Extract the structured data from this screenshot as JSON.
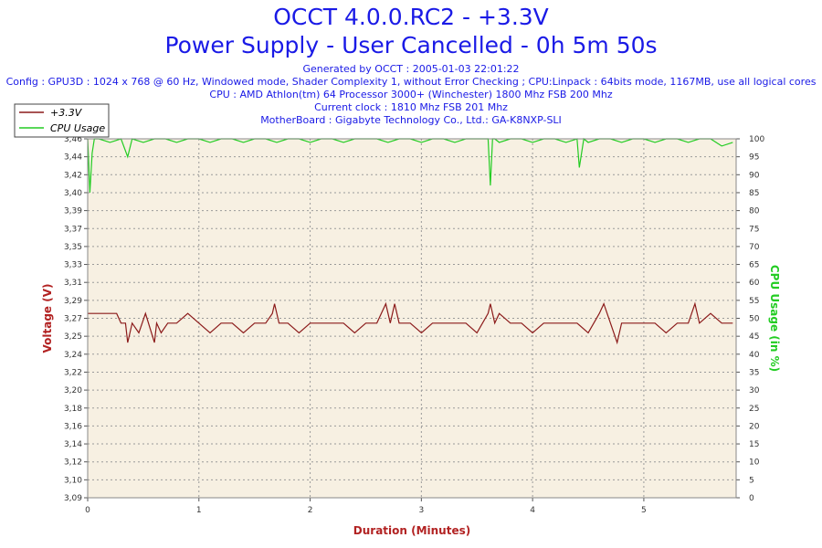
{
  "header": {
    "title_line1": "OCCT 4.0.0.RC2 - +3.3V",
    "title_line2": "Power Supply - User Cancelled - 0h 5m 50s",
    "generated": "Generated by OCCT : 2005-01-03 22:01:22",
    "config": "Config : GPU3D : 1024 x 768 @ 60 Hz, Windowed mode, Shader Complexity 1, without Error Checking ; CPU:Linpack : 64bits mode, 1167MB, use all logical cores",
    "cpu": "CPU : AMD Athlon(tm) 64 Processor 3000+ (Winchester) 1800 Mhz FSB 200 Mhz",
    "clock": "Current clock : 1810 Mhz FSB 201 Mhz",
    "motherboard": "MotherBoard : Gigabyte Technology Co., Ltd.: GA-K8NXP-SLI"
  },
  "chart_data": {
    "type": "line",
    "xlabel": "Duration (Minutes)",
    "ylabel_left": "Voltage (V)",
    "ylabel_right": "CPU Usage (in %)",
    "xlim": [
      0,
      5.83
    ],
    "ylim_left": [
      3.09,
      3.46
    ],
    "ylim_right": [
      0,
      100
    ],
    "x_ticks": [
      "0",
      "1",
      "2",
      "3",
      "4",
      "5"
    ],
    "y_left_ticks": [
      "3,46",
      "3,44",
      "3,42",
      "3,40",
      "3,39",
      "3,37",
      "3,35",
      "3,33",
      "3,31",
      "3,29",
      "3,27",
      "3,25",
      "3,24",
      "3,22",
      "3,20",
      "3,18",
      "3,16",
      "3,14",
      "3,12",
      "3,10",
      "3,09"
    ],
    "y_right_ticks": [
      "100",
      "95",
      "90",
      "85",
      "80",
      "75",
      "70",
      "65",
      "60",
      "55",
      "50",
      "45",
      "40",
      "35",
      "30",
      "25",
      "20",
      "15",
      "10",
      "5",
      "0"
    ],
    "grid": true,
    "legend_position": "top-left",
    "series": [
      {
        "name": "+3.3V",
        "color": "#8b1a1a",
        "axis": "left",
        "x": [
          0,
          0.08,
          0.2,
          0.26,
          0.3,
          0.34,
          0.36,
          0.4,
          0.46,
          0.52,
          0.6,
          0.62,
          0.66,
          0.72,
          0.8,
          0.9,
          1.0,
          1.1,
          1.2,
          1.3,
          1.4,
          1.5,
          1.6,
          1.66,
          1.68,
          1.72,
          1.8,
          1.9,
          2.0,
          2.1,
          2.2,
          2.3,
          2.4,
          2.5,
          2.6,
          2.68,
          2.72,
          2.76,
          2.8,
          2.9,
          3.0,
          3.1,
          3.2,
          3.3,
          3.4,
          3.5,
          3.6,
          3.62,
          3.66,
          3.7,
          3.8,
          3.9,
          4.0,
          4.1,
          4.2,
          4.3,
          4.4,
          4.5,
          4.6,
          4.64,
          4.7,
          4.76,
          4.8,
          4.9,
          5.0,
          5.1,
          5.2,
          5.3,
          5.4,
          5.46,
          5.5,
          5.6,
          5.7,
          5.8
        ],
        "values": [
          3.28,
          3.28,
          3.28,
          3.28,
          3.27,
          3.27,
          3.25,
          3.27,
          3.26,
          3.28,
          3.25,
          3.27,
          3.26,
          3.27,
          3.27,
          3.28,
          3.27,
          3.26,
          3.27,
          3.27,
          3.26,
          3.27,
          3.27,
          3.28,
          3.29,
          3.27,
          3.27,
          3.26,
          3.27,
          3.27,
          3.27,
          3.27,
          3.26,
          3.27,
          3.27,
          3.29,
          3.27,
          3.29,
          3.27,
          3.27,
          3.26,
          3.27,
          3.27,
          3.27,
          3.27,
          3.26,
          3.28,
          3.29,
          3.27,
          3.28,
          3.27,
          3.27,
          3.26,
          3.27,
          3.27,
          3.27,
          3.27,
          3.26,
          3.28,
          3.29,
          3.27,
          3.25,
          3.27,
          3.27,
          3.27,
          3.27,
          3.26,
          3.27,
          3.27,
          3.29,
          3.27,
          3.28,
          3.27,
          3.27
        ]
      },
      {
        "name": "CPU Usage",
        "color": "#22cc22",
        "axis": "right",
        "x": [
          0,
          0.02,
          0.04,
          0.06,
          0.1,
          0.2,
          0.3,
          0.36,
          0.4,
          0.5,
          0.6,
          0.7,
          0.8,
          0.9,
          1.0,
          1.1,
          1.2,
          1.3,
          1.4,
          1.5,
          1.6,
          1.7,
          1.8,
          1.9,
          2.0,
          2.1,
          2.2,
          2.3,
          2.4,
          2.5,
          2.6,
          2.7,
          2.8,
          2.9,
          3.0,
          3.1,
          3.2,
          3.3,
          3.4,
          3.5,
          3.6,
          3.62,
          3.64,
          3.66,
          3.7,
          3.8,
          3.9,
          4.0,
          4.1,
          4.2,
          4.3,
          4.4,
          4.42,
          4.46,
          4.5,
          4.6,
          4.7,
          4.8,
          4.9,
          5.0,
          5.1,
          5.2,
          5.3,
          5.4,
          5.5,
          5.6,
          5.7,
          5.8
        ],
        "values": [
          100,
          85,
          96,
          100,
          100,
          99,
          100,
          95,
          100,
          99,
          100,
          100,
          99,
          100,
          100,
          99,
          100,
          100,
          99,
          100,
          100,
          99,
          100,
          100,
          99,
          100,
          100,
          99,
          100,
          100,
          100,
          99,
          100,
          100,
          99,
          100,
          100,
          99,
          100,
          100,
          100,
          87,
          100,
          100,
          99,
          100,
          100,
          99,
          100,
          100,
          99,
          100,
          92,
          100,
          99,
          100,
          100,
          99,
          100,
          100,
          99,
          100,
          100,
          99,
          100,
          100,
          98,
          99
        ]
      }
    ]
  }
}
